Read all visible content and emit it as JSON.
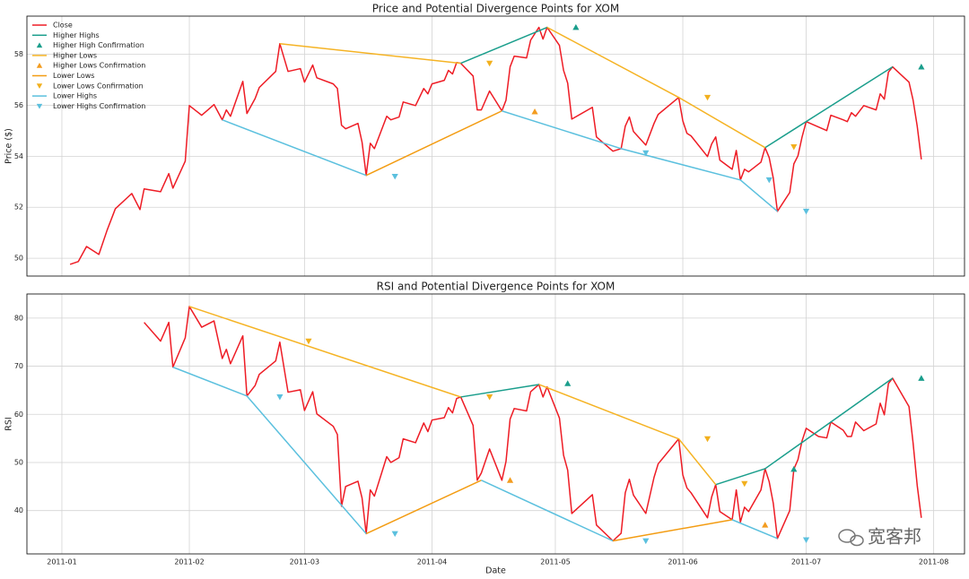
{
  "chart_data": [
    {
      "type": "line",
      "title": "Price and Potential Divergence Points for XOM",
      "ylabel": "Price ($)",
      "xlim": [
        -8.5,
        219.5
      ],
      "xticks": [
        0,
        31,
        59,
        90,
        120,
        151,
        181,
        212
      ],
      "ylim": [
        49.3,
        59.5
      ],
      "yticks": [
        50,
        52,
        54,
        56,
        58
      ],
      "grid": true,
      "legend": "upper left",
      "x": [
        2,
        4,
        6,
        9,
        11,
        13,
        17,
        19,
        20,
        24,
        26,
        27,
        30,
        31,
        34,
        37,
        39,
        40,
        41,
        44,
        45,
        47,
        48,
        52,
        53,
        55,
        58,
        59,
        61,
        62,
        66,
        67,
        68,
        69,
        72,
        73,
        74,
        75,
        76,
        79,
        80,
        82,
        83,
        86,
        88,
        89,
        90,
        93,
        94,
        95,
        96,
        97,
        100,
        101,
        102,
        104,
        107,
        108,
        109,
        110,
        113,
        114,
        116,
        117,
        118,
        121,
        122,
        123,
        124,
        129,
        130,
        134,
        136,
        137,
        138,
        139,
        142,
        144,
        145,
        150,
        151,
        152,
        153,
        157,
        158,
        159,
        160,
        163,
        164,
        165,
        166,
        167,
        170,
        171,
        172,
        173,
        174,
        177,
        178,
        179,
        180,
        181,
        184,
        186,
        187,
        190,
        191,
        192,
        193,
        195,
        198,
        199,
        200,
        201,
        202,
        206,
        207,
        208,
        209
      ],
      "series": [
        {
          "name": "Close",
          "color": "#ee1c25",
          "values": [
            49.76,
            49.87,
            50.46,
            50.15,
            51.1,
            51.94,
            52.54,
            51.91,
            52.72,
            52.61,
            53.32,
            52.75,
            53.81,
            55.99,
            55.61,
            56.03,
            55.43,
            55.82,
            55.57,
            56.94,
            55.68,
            56.27,
            56.7,
            57.33,
            58.42,
            57.33,
            57.44,
            56.91,
            57.58,
            57.08,
            56.84,
            56.66,
            55.22,
            55.08,
            55.29,
            54.55,
            53.25,
            54.51,
            54.3,
            55.57,
            55.43,
            55.54,
            56.13,
            55.99,
            56.66,
            56.45,
            56.84,
            56.98,
            57.37,
            57.23,
            57.68,
            57.65,
            57.15,
            55.82,
            55.82,
            56.56,
            55.78,
            56.2,
            57.51,
            57.93,
            57.86,
            58.56,
            59.06,
            58.6,
            59.06,
            58.35,
            57.37,
            56.87,
            55.46,
            55.92,
            54.76,
            54.2,
            54.3,
            55.18,
            55.54,
            54.97,
            54.44,
            55.29,
            55.64,
            56.31,
            55.39,
            54.9,
            54.8,
            53.99,
            54.48,
            54.76,
            53.85,
            53.49,
            54.23,
            53.07,
            53.49,
            53.39,
            53.77,
            54.34,
            53.95,
            53.14,
            51.84,
            52.58,
            53.7,
            54.02,
            54.76,
            55.36,
            55.15,
            55.01,
            55.61,
            55.43,
            55.36,
            55.71,
            55.57,
            55.99,
            55.82,
            56.45,
            56.24,
            57.3,
            57.51,
            56.91,
            56.2,
            55.18,
            53.88
          ]
        },
        {
          "name": "Higher Highs",
          "color": "#1a9e8c",
          "x": [
            97,
            118,
            null,
            171,
            202
          ],
          "values": [
            57.65,
            59.06,
            null,
            54.34,
            57.51
          ]
        },
        {
          "name": "Higher High Confirmation",
          "color": "#1a9e8c",
          "marker": "^",
          "x": [
            125,
            209
          ],
          "values": [
            59.06,
            57.51
          ]
        },
        {
          "name": "Higher Lows",
          "color": "#f5b324",
          "x": [
            53,
            97,
            null,
            118,
            150,
            171
          ],
          "values": [
            58.42,
            57.65,
            null,
            59.06,
            56.31,
            54.34
          ]
        },
        {
          "name": "Higher Lows Confirmation",
          "color": "#f39c1f",
          "marker": "^",
          "x": [
            115
          ],
          "values": [
            55.75
          ]
        },
        {
          "name": "Lower Lows",
          "color": "#f39c12",
          "x": [
            74,
            107
          ],
          "values": [
            53.25,
            55.78
          ]
        },
        {
          "name": "Lower Lows Confirmation",
          "color": "#f2b01e",
          "marker": "v",
          "x": [
            104,
            157,
            178
          ],
          "values": [
            57.65,
            56.31,
            54.37
          ]
        },
        {
          "name": "Lower Highs",
          "color": "#5bc0de",
          "x": [
            39,
            74,
            null,
            107,
            136,
            165,
            174
          ],
          "values": [
            55.43,
            53.25,
            null,
            55.78,
            54.3,
            53.07,
            51.84
          ]
        },
        {
          "name": "Lower Highs Confirmation",
          "color": "#5bc0de",
          "marker": "v",
          "x": [
            81,
            142,
            172,
            181
          ],
          "values": [
            53.21,
            54.13,
            53.07,
            51.84
          ]
        }
      ]
    },
    {
      "type": "line",
      "title": "RSI and Potential Divergence Points for XOM",
      "xlabel": "Date",
      "ylabel": "RSI",
      "xlim": [
        -8.5,
        219.5
      ],
      "xticks": [
        {
          "value": 0,
          "label": "2011-01"
        },
        {
          "value": 31,
          "label": "2011-02"
        },
        {
          "value": 59,
          "label": "2011-03"
        },
        {
          "value": 90,
          "label": "2011-04"
        },
        {
          "value": 120,
          "label": "2011-05"
        },
        {
          "value": 151,
          "label": "2011-06"
        },
        {
          "value": 181,
          "label": "2011-07"
        },
        {
          "value": 212,
          "label": "2011-08"
        }
      ],
      "ylim": [
        31,
        85
      ],
      "yticks": [
        40,
        50,
        60,
        70,
        80
      ],
      "grid": true,
      "x": [
        2,
        4,
        6,
        9,
        11,
        13,
        17,
        19,
        20,
        24,
        26,
        27,
        30,
        31,
        34,
        37,
        39,
        40,
        41,
        44,
        45,
        47,
        48,
        52,
        53,
        55,
        58,
        59,
        61,
        62,
        66,
        67,
        68,
        69,
        72,
        73,
        74,
        75,
        76,
        79,
        80,
        82,
        83,
        86,
        88,
        89,
        90,
        93,
        94,
        95,
        96,
        97,
        100,
        101,
        102,
        104,
        107,
        108,
        109,
        110,
        113,
        114,
        116,
        117,
        118,
        121,
        122,
        123,
        124,
        129,
        130,
        134,
        136,
        137,
        138,
        139,
        142,
        144,
        145,
        150,
        151,
        152,
        153,
        157,
        158,
        159,
        160,
        163,
        164,
        165,
        166,
        167,
        170,
        171,
        172,
        173,
        174,
        177,
        178,
        179,
        180,
        181,
        184,
        186,
        187,
        190,
        191,
        192,
        193,
        195,
        198,
        199,
        200,
        201,
        202,
        206,
        207,
        208,
        209
      ],
      "series": [
        {
          "color": "#ee1c25",
          "values": [
            null,
            null,
            null,
            null,
            null,
            null,
            null,
            null,
            79.1,
            75.2,
            79.1,
            69.8,
            75.9,
            82.4,
            78.1,
            79.4,
            71.6,
            73.5,
            70.5,
            76.3,
            63.8,
            66.0,
            68.3,
            71.1,
            75.0,
            64.6,
            65.1,
            60.8,
            64.7,
            60.1,
            57.5,
            55.8,
            40.9,
            45.0,
            46.1,
            42.6,
            35.2,
            44.3,
            43.0,
            51.2,
            50.0,
            51.0,
            54.9,
            54.1,
            58.2,
            56.4,
            58.8,
            59.3,
            61.4,
            60.3,
            63.3,
            63.6,
            57.7,
            46.3,
            47.8,
            52.8,
            46.3,
            50.2,
            59.0,
            61.2,
            60.7,
            64.7,
            66.2,
            63.6,
            65.7,
            59.2,
            51.5,
            48.4,
            39.4,
            43.3,
            37.0,
            33.7,
            35.3,
            43.7,
            46.5,
            43.2,
            39.4,
            46.9,
            49.7,
            54.9,
            47.4,
            44.7,
            43.7,
            38.5,
            42.8,
            45.4,
            39.8,
            38.1,
            44.3,
            37.6,
            40.7,
            39.8,
            44.3,
            48.7,
            46.0,
            41.5,
            34.2,
            40.0,
            48.6,
            50.6,
            54.5,
            57.1,
            55.4,
            55.1,
            58.4,
            56.7,
            55.4,
            55.4,
            58.4,
            56.6,
            58.0,
            62.3,
            59.9,
            66.4,
            67.5,
            61.6,
            54.0,
            45.2,
            38.5
          ]
        },
        {
          "color": "#1a9e8c",
          "x": [
            97,
            116,
            null,
            159,
            171,
            202
          ],
          "values": [
            63.6,
            66.2,
            null,
            45.4,
            48.7,
            67.5
          ]
        },
        {
          "color": "#1a9e8c",
          "marker": "^",
          "x": [
            123,
            178,
            209
          ],
          "values": [
            66.4,
            48.6,
            67.5
          ]
        },
        {
          "color": "#f5b324",
          "x": [
            31,
            97,
            null,
            116,
            150,
            159
          ],
          "values": [
            82.4,
            63.6,
            null,
            66.2,
            54.9,
            45.4
          ]
        },
        {
          "color": "#f39c1f",
          "marker": "^",
          "x": [
            109,
            171
          ],
          "values": [
            46.3,
            37.0
          ]
        },
        {
          "color": "#f39c12",
          "x": [
            74,
            102,
            null,
            134,
            163
          ],
          "values": [
            35.2,
            46.3,
            null,
            33.7,
            38.1
          ]
        },
        {
          "color": "#f2b01e",
          "marker": "v",
          "x": [
            60,
            104,
            157,
            166
          ],
          "values": [
            75.2,
            63.6,
            54.9,
            45.6
          ]
        },
        {
          "color": "#5bc0de",
          "x": [
            27,
            45,
            74,
            null,
            102,
            134,
            null,
            163,
            174
          ],
          "values": [
            69.8,
            63.8,
            35.2,
            null,
            46.3,
            33.7,
            null,
            38.1,
            34.2
          ]
        },
        {
          "color": "#5bc0de",
          "marker": "v",
          "x": [
            53,
            81,
            142,
            181
          ],
          "values": [
            63.6,
            35.2,
            33.7,
            33.9
          ]
        }
      ]
    }
  ],
  "watermark": "宽客邦"
}
